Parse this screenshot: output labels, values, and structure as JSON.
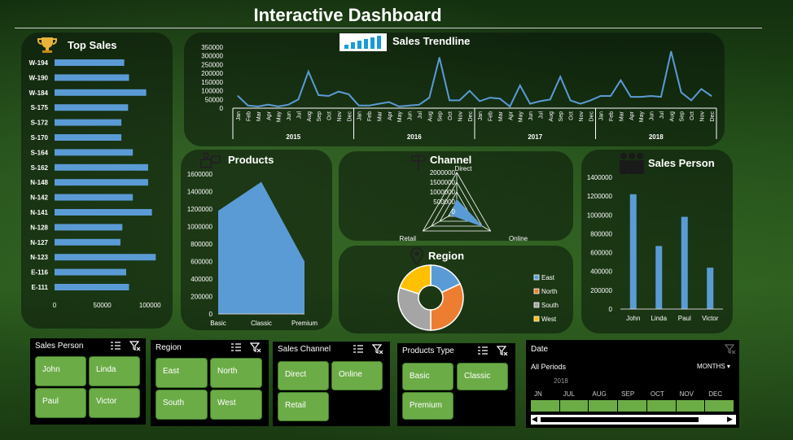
{
  "title": "Interactive Dashboard",
  "top_sales": {
    "title": "Top Sales",
    "icon": "trophy-icon",
    "chart_data": {
      "type": "bar",
      "orientation": "horizontal",
      "categories": [
        "W-194",
        "W-190",
        "W-184",
        "S-175",
        "S-172",
        "S-170",
        "S-164",
        "S-162",
        "N-148",
        "N-142",
        "N-141",
        "N-128",
        "N-127",
        "N-123",
        "E-116",
        "E-111"
      ],
      "values": [
        73000,
        78000,
        96000,
        77000,
        70000,
        70000,
        82000,
        98000,
        98000,
        82000,
        102000,
        71000,
        69000,
        106000,
        75000,
        78000
      ],
      "xticks": [
        "0",
        "50000",
        "100000"
      ],
      "xlim": [
        0,
        110000
      ],
      "color": "#5b9bd5"
    }
  },
  "trendline": {
    "title": "Sales Trendline",
    "icon": "bar-chart-icon",
    "chart_data": {
      "type": "line",
      "years": [
        "2015",
        "2016",
        "2017",
        "2018"
      ],
      "months": [
        "Jan",
        "Feb",
        "Mar",
        "Apr",
        "May",
        "Jun",
        "Jul",
        "Aug",
        "Sep",
        "Oct",
        "Nov",
        "Dec"
      ],
      "values": [
        70000,
        15000,
        10000,
        20000,
        10000,
        20000,
        50000,
        210000,
        75000,
        70000,
        95000,
        80000,
        15000,
        15000,
        25000,
        35000,
        10000,
        15000,
        20000,
        60000,
        290000,
        45000,
        45000,
        100000,
        40000,
        60000,
        55000,
        10000,
        130000,
        25000,
        40000,
        50000,
        180000,
        45000,
        25000,
        45000,
        70000,
        70000,
        160000,
        65000,
        65000,
        70000,
        65000,
        325000,
        90000,
        45000,
        110000,
        70000
      ],
      "yticks": [
        "0",
        "50000",
        "100000",
        "150000",
        "200000",
        "250000",
        "300000",
        "350000"
      ],
      "ylim": [
        0,
        350000
      ],
      "color": "#5b9bd5"
    }
  },
  "products": {
    "title": "Products",
    "icon": "products-icon",
    "chart_data": {
      "type": "area",
      "categories": [
        "Basic",
        "Classic",
        "Premium"
      ],
      "values": [
        1180000,
        1510000,
        600000
      ],
      "yticks": [
        "0",
        "200000",
        "400000",
        "600000",
        "800000",
        "1000000",
        "1200000",
        "1400000",
        "1600000"
      ],
      "ylim": [
        0,
        1600000
      ],
      "color": "#5b9bd5"
    }
  },
  "channel": {
    "title": "Channel",
    "icon": "signpost-icon",
    "chart_data": {
      "type": "radar",
      "axes": [
        "Direct",
        "Online",
        "Retail"
      ],
      "values": [
        600000,
        1500000,
        350000
      ],
      "rticks": [
        "0",
        "500000",
        "1000000",
        "1500000",
        "2000000"
      ],
      "rmax": 2000000,
      "color": "#5b9bd5"
    }
  },
  "region": {
    "title": "Region",
    "icon": "location-pin-icon",
    "chart_data": {
      "type": "pie",
      "donut": true,
      "categories": [
        "East",
        "North",
        "South",
        "West"
      ],
      "values": [
        18,
        32,
        30,
        20
      ],
      "colors": [
        "#5b9bd5",
        "#ed7d31",
        "#a5a5a5",
        "#ffc000"
      ]
    }
  },
  "sales_person": {
    "title": "Sales Person",
    "icon": "people-icon",
    "chart_data": {
      "type": "bar",
      "categories": [
        "John",
        "Linda",
        "Paul",
        "Victor"
      ],
      "values": [
        1220000,
        670000,
        980000,
        440000
      ],
      "yticks": [
        "0",
        "200000",
        "400000",
        "600000",
        "800000",
        "1000000",
        "1200000",
        "1400000"
      ],
      "ylim": [
        0,
        1400000
      ],
      "color": "#5b9bd5"
    }
  },
  "slicers": {
    "sales_person": {
      "title": "Sales Person",
      "items": [
        "John",
        "Linda",
        "Paul",
        "Victor"
      ]
    },
    "region": {
      "title": "Region",
      "items": [
        "East",
        "North",
        "South",
        "West"
      ]
    },
    "channel": {
      "title": "Sales Channel",
      "items": [
        "Direct",
        "Online",
        "Retail"
      ]
    },
    "product": {
      "title": "Products Type",
      "items": [
        "Basic",
        "Classic",
        "Premium"
      ]
    }
  },
  "date_filter": {
    "title": "Date",
    "period_label": "All Periods",
    "unit_label": "MONTHS",
    "year": "2018",
    "months": [
      "JN",
      "JUL",
      "AUG",
      "SEP",
      "OCT",
      "NOV",
      "DEC"
    ]
  }
}
